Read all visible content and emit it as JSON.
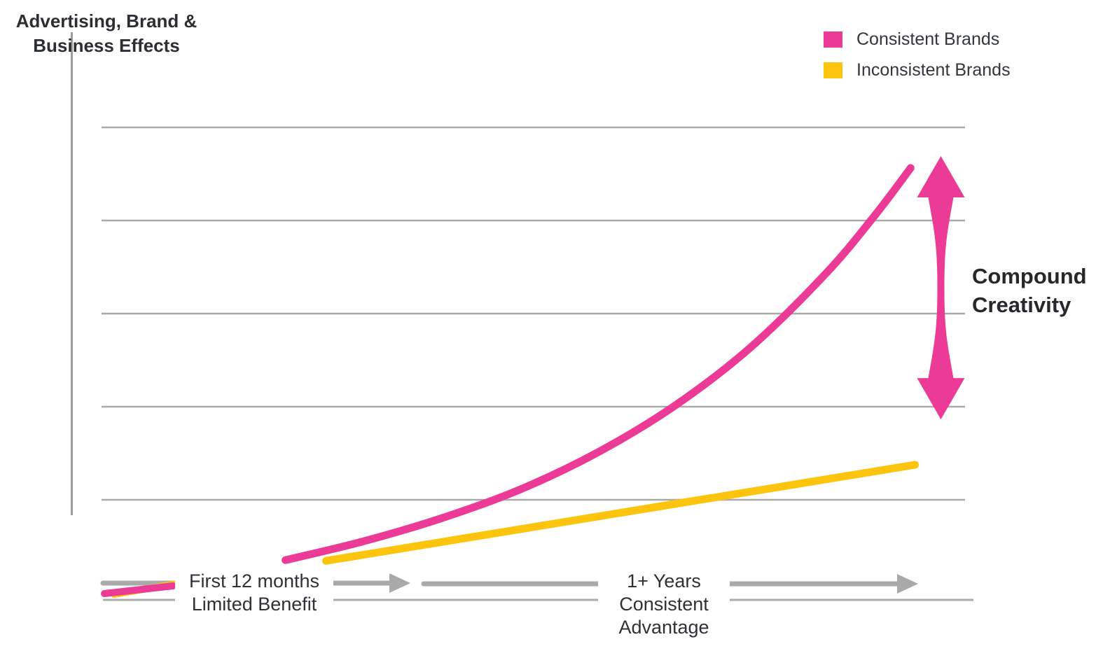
{
  "title": {
    "line1": "Advertising, Brand &",
    "line2": "Business Effects"
  },
  "legend": {
    "items": [
      {
        "label": "Consistent Brands",
        "color": "#EC3B97"
      },
      {
        "label": "Inconsistent Brands",
        "color": "#FCC40C"
      }
    ]
  },
  "annotation": {
    "line1": "Compound",
    "line2": "Creativity"
  },
  "timeline": {
    "phase1": {
      "line1": "First 12 months",
      "line2": "Limited Benefit"
    },
    "phase2": {
      "line1": "1+ Years",
      "line2": "Consistent",
      "line3": "Advantage"
    }
  },
  "colors": {
    "consistent_pink": "#EC3B97",
    "inconsistent_yellow": "#FCC40C",
    "grid_gray": "#A9A9A9",
    "arrow_gray": "#A9A9A9",
    "axis_gray": "#9D9D9D",
    "text_dark": "#2B2E33"
  },
  "chart_data": {
    "type": "line",
    "title": "",
    "ylabel": "Advertising, Brand & Business Effects",
    "xlabel": "",
    "x_annotations": [
      "First 12 months — Limited Benefit",
      "1+ Years — Consistent Advantage"
    ],
    "xlim": [
      0,
      100
    ],
    "ylim": [
      -20,
      110
    ],
    "gridlines_y": [
      0,
      25,
      50,
      75,
      100
    ],
    "grid": "horizontal-only",
    "axis_tick_labels": "none",
    "legend_position": "top-right",
    "series": [
      {
        "name": "Consistent Brands",
        "color": "#EC3B97",
        "shape": "exponential",
        "x": [
          21.3,
          30.4,
          39.3,
          48.3,
          57.2,
          66.1,
          75.0,
          83.9,
          89.6,
          93.7
        ],
        "y": [
          -16.2,
          -11.1,
          -5.0,
          2.6,
          12.4,
          24.8,
          40.6,
          60.8,
          76.5,
          89.1
        ]
      },
      {
        "name": "Inconsistent Brands",
        "color": "#FCC40C",
        "shape": "linear",
        "x": [
          26.0,
          94.2
        ],
        "y": [
          -16.4,
          9.4
        ]
      }
    ],
    "annotations": [
      {
        "type": "double-arrow",
        "text": "Compound Creativity",
        "x": 97.2,
        "y_from": 21.6,
        "y_to": 92.3,
        "color": "#EC3B97"
      }
    ]
  }
}
